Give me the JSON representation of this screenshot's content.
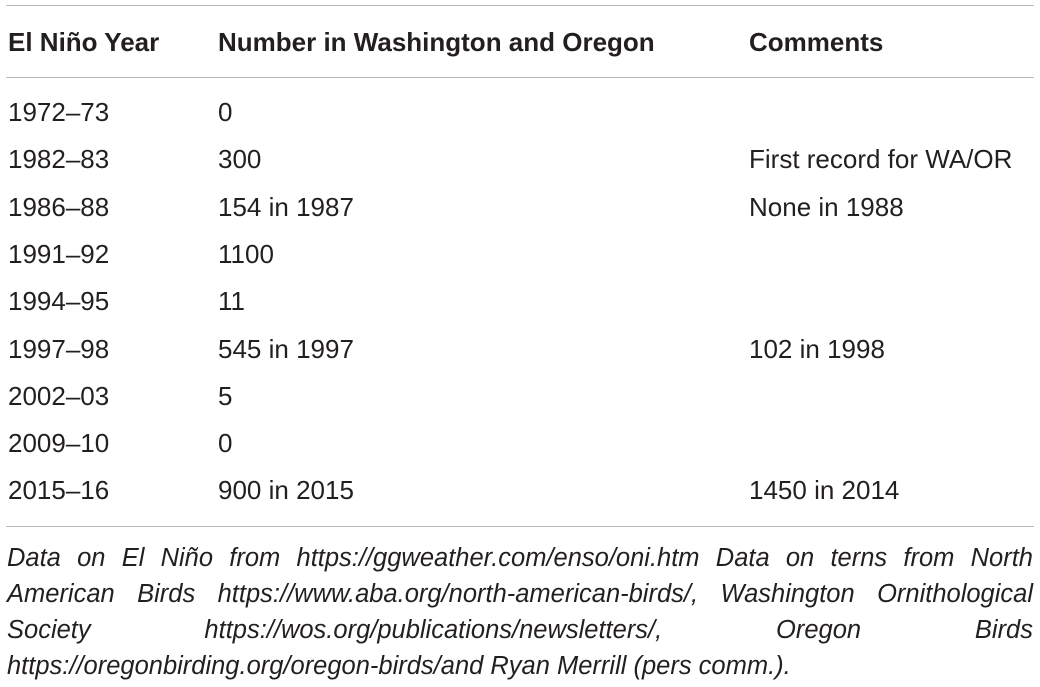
{
  "table": {
    "header": [
      "El Niño Year",
      "Number in Washington and Oregon",
      "Comments"
    ],
    "rows": [
      [
        "1972–73",
        "0",
        null
      ],
      [
        "1982–83",
        "300",
        "First record for WA/OR"
      ],
      [
        "1986–88",
        "154 in 1987",
        "None in 1988"
      ],
      [
        "1991–92",
        "1100",
        null
      ],
      [
        "1994–95",
        "11",
        null
      ],
      [
        "1997–98",
        "545 in 1997",
        "102 in 1998"
      ],
      [
        "2002–03",
        "5",
        null
      ],
      [
        "2009–10",
        "0",
        null
      ],
      [
        "2015–16",
        "900 in 2015",
        "1450 in 2014"
      ]
    ],
    "footnote": "Data on El Niño from https://ggweather.com/enso/oni.htm Data on terns from North American Birds https://www.aba.org/north-american-birds/, Washington Ornithological Society https://wos.org/publications/newsletters/, Oregon Birds https://oregonbirding.org/oregon-birds/and Ryan Merrill (pers comm.)."
  }
}
